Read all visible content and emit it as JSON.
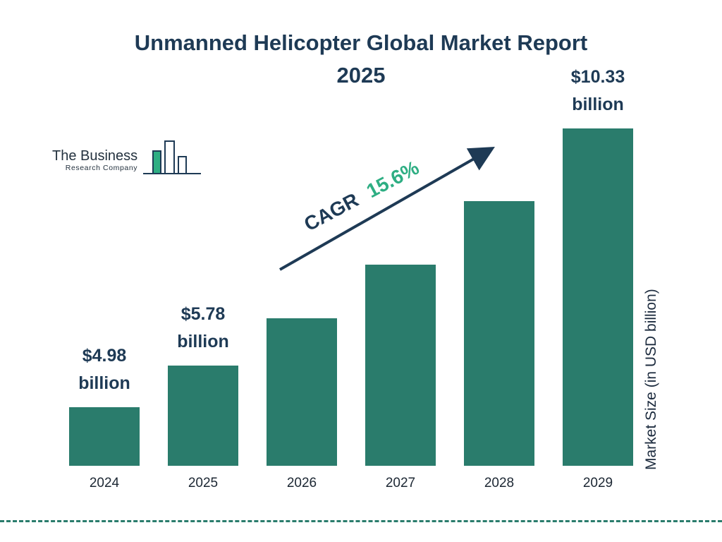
{
  "page": {
    "title_line1": "Unmanned Helicopter Global Market Report",
    "title_line2": "2025"
  },
  "logo": {
    "line1": "The Business",
    "line2": "Research Company"
  },
  "annotations": {
    "cagr_label": "CAGR",
    "cagr_value": "15.6%"
  },
  "y_axis_label": "Market Size (in USD billion)",
  "colors": {
    "bar": "#2a7c6c",
    "navy": "#1e3a55",
    "green": "#2eae83"
  },
  "chart_data": {
    "type": "bar",
    "title": "Unmanned Helicopter Global Market Report 2025",
    "categories": [
      "2024",
      "2025",
      "2026",
      "2027",
      "2028",
      "2029"
    ],
    "values": [
      4.98,
      5.78,
      6.68,
      7.72,
      8.93,
      10.33
    ],
    "value_labels": [
      {
        "category": "2024",
        "line1": "$4.98",
        "line2": "billion"
      },
      {
        "category": "2025",
        "line1": "$5.78",
        "line2": "billion"
      },
      {
        "category": "2029",
        "line1": "$10.33",
        "line2": "billion"
      }
    ],
    "xlabel": "",
    "ylabel": "Market Size (in USD billion)",
    "cagr": "15.6%",
    "grid": false,
    "legend": false
  }
}
